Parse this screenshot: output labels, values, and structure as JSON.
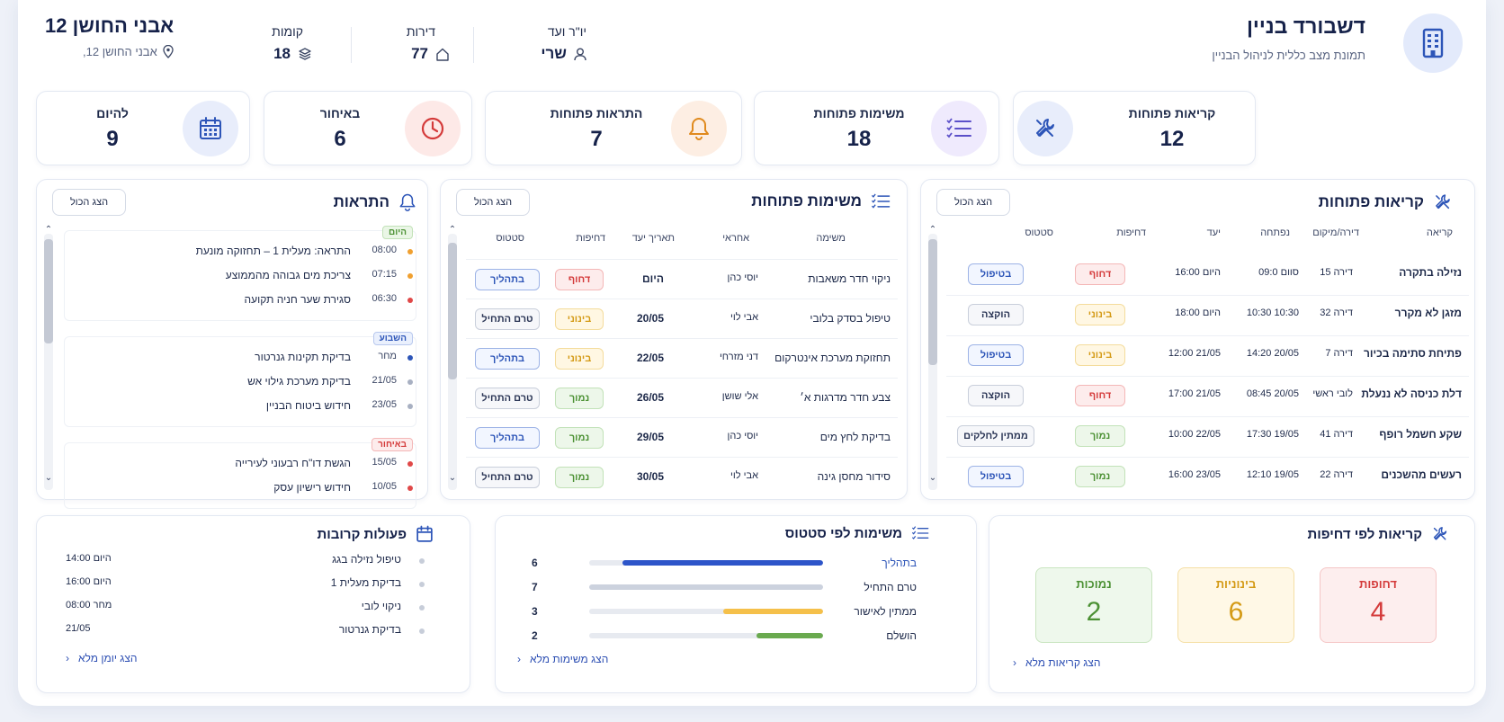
{
  "header": {
    "title": "דשבורד בניין",
    "subtitle": "תמונת מצב כללית לניהול הבניין",
    "chair_label": "יו\"ר ועד",
    "chair_value": "שרי",
    "apartments_label": "דירות",
    "apartments_value": "77",
    "floors_label": "קומות",
    "floors_value": "18",
    "building_name": "אבני החושן 12",
    "building_address": "אבני החושן 12,"
  },
  "stats": [
    {
      "label": "קריאות פתוחות",
      "value": "12",
      "color": "#2d55b8"
    },
    {
      "label": "משימות פתוחות",
      "value": "18",
      "color": "#5b4fc9"
    },
    {
      "label": "התראות פתוחות",
      "value": "7",
      "color": "#e08a1e"
    },
    {
      "label": "באיחור",
      "value": "6",
      "color": "#d43a3a"
    },
    {
      "label": "להיום",
      "value": "9",
      "color": "#2d55b8"
    }
  ],
  "calls": {
    "title": "קריאות פתוחות",
    "show_all": "הצג הכול",
    "headers": [
      "קריאה",
      "דירה/מיקום",
      "נפתחה",
      "יעד",
      "דחיפות",
      "סטטוס"
    ],
    "rows": [
      {
        "name": "נזילה בתקרה",
        "loc": "דירה 15",
        "opened": "סוום 09:0",
        "due": "היום 16:00",
        "prio": "דחוף",
        "status": "בטיפול"
      },
      {
        "name": "מזגן לא מקרר",
        "loc": "דירה 32",
        "opened": "10:30 10:30",
        "due": "היום 18:00",
        "prio": "בינוני",
        "status": "הוקצה"
      },
      {
        "name": "פתיחת סתימה בכיור",
        "loc": "דירה 7",
        "opened": "20/05 14:20",
        "due": "21/05 12:00",
        "prio": "בינוני",
        "status": "בטיפול"
      },
      {
        "name": "דלת כניסה לא ננעלת",
        "loc": "לובי ראשי",
        "opened": "20/05 08:45",
        "due": "21/05 17:00",
        "prio": "דחוף",
        "status": "הוקצה"
      },
      {
        "name": "שקע חשמל רופף",
        "loc": "דירה 41",
        "opened": "19/05 17:30",
        "due": "22/05 10:00",
        "prio": "נמוך",
        "status": "ממתין לחלקים"
      },
      {
        "name": "רעשים מהשכנים",
        "loc": "דירה 22",
        "opened": "19/05 12:10",
        "due": "23/05 16:00",
        "prio": "נמוך",
        "status": "בטיפול"
      }
    ]
  },
  "tasks": {
    "title": "משימות פתוחות",
    "show_all": "הצג הכול",
    "headers": [
      "משימה",
      "אחראי",
      "תאריך יעד",
      "דחיפות",
      "סטטוס"
    ],
    "rows": [
      {
        "name": "ניקוי חדר משאבות",
        "owner": "יוסי כהן",
        "due": "היום",
        "prio": "דחוף",
        "status": "בתהליך"
      },
      {
        "name": "טיפול בסדק בלובי",
        "owner": "אבי לוי",
        "due": "20/05",
        "prio": "בינוני",
        "status": "טרם התחיל"
      },
      {
        "name": "תחזוקת מערכת אינטרקום",
        "owner": "דני מזרחי",
        "due": "22/05",
        "prio": "בינוני",
        "status": "בתהליך"
      },
      {
        "name": "צבע חדר מדרגות א׳",
        "owner": "אלי שושן",
        "due": "26/05",
        "prio": "נמוך",
        "status": "טרם התחיל"
      },
      {
        "name": "בדיקת לחץ מים",
        "owner": "יוסי כהן",
        "due": "29/05",
        "prio": "נמוך",
        "status": "בתהליך"
      },
      {
        "name": "סידור מחסן גינה",
        "owner": "אבי לוי",
        "due": "30/05",
        "prio": "נמוך",
        "status": "טרם התחיל"
      }
    ]
  },
  "alerts": {
    "title": "התראות",
    "show_all": "הצג הכול",
    "groups": [
      {
        "tag": "היום",
        "items": [
          {
            "time": "08:00",
            "text": "התראה: מעלית 1 – תחזוקה מונעת",
            "dot": "#f0a030"
          },
          {
            "time": "07:15",
            "text": "צריכת מים גבוהה מהממוצע",
            "dot": "#f0a030"
          },
          {
            "time": "06:30",
            "text": "סגירת שער חניה תקועה",
            "dot": "#e04848"
          }
        ]
      },
      {
        "tag": "השבוע",
        "items": [
          {
            "time": "מחר",
            "text": "בדיקת תקינות גנרטור",
            "dot": "#2d55b8"
          },
          {
            "time": "21/05",
            "text": "בדיקת מערכת גילוי אש",
            "dot": "#a8b0c2"
          },
          {
            "time": "23/05",
            "text": "חידוש ביטוח הבניין",
            "dot": "#a8b0c2"
          }
        ]
      },
      {
        "tag": "באיחור",
        "items": [
          {
            "time": "15/05",
            "text": "הגשת דו\"ח רבעוני לעירייה",
            "dot": "#e04848"
          },
          {
            "time": "10/05",
            "text": "חידוש רישיון עסק",
            "dot": "#e04848"
          }
        ]
      }
    ]
  },
  "priority": {
    "title": "קריאות לפי דחיפות",
    "boxes": [
      {
        "label": "דחופות",
        "value": "4"
      },
      {
        "label": "בינוניות",
        "value": "6"
      },
      {
        "label": "נמוכות",
        "value": "2"
      }
    ],
    "link": "הצג קריאות מלא"
  },
  "task_status": {
    "title": "משימות לפי סטטוס",
    "max": 7,
    "rows": [
      {
        "label": "בתהליך",
        "value": 6,
        "color": "#2d55c9"
      },
      {
        "label": "טרם התחיל",
        "value": 7,
        "color": "#ccd2de"
      },
      {
        "label": "ממתין לאישור",
        "value": 3,
        "color": "#f5c04a"
      },
      {
        "label": "הושלם",
        "value": 2,
        "color": "#6aaa4f"
      }
    ],
    "link": "הצג משימות מלא"
  },
  "upcoming": {
    "title": "פעולות קרובות",
    "items": [
      {
        "text": "טיפול נזילה בגג",
        "when": "היום 14:00"
      },
      {
        "text": "בדיקת מעלית 1",
        "when": "היום 16:00"
      },
      {
        "text": "ניקוי לובי",
        "when": "מחר 08:00"
      },
      {
        "text": "בדיקת גנרטור",
        "when": "21/05"
      }
    ],
    "link": "הצג יומן מלא"
  }
}
